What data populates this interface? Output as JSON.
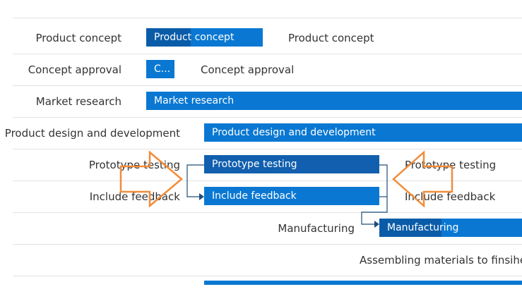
{
  "tasks": [
    {
      "label": "Product concept",
      "bar_label": "Product concept",
      "side_label": "Product concept"
    },
    {
      "label": "Concept approval",
      "bar_label": "C...",
      "side_label": "Concept approval"
    },
    {
      "label": "Market research",
      "bar_label": "Market research"
    },
    {
      "label": "Product design and development",
      "bar_label": "Product design and development"
    },
    {
      "label": "Prototype testing",
      "bar_label": "Prototype testing",
      "side_label": "Prototype testing"
    },
    {
      "label": "Include feedback",
      "bar_label": "Include feedback",
      "side_label": "Include feedback"
    },
    {
      "bar_label": "Manufacturing",
      "side_label": "Manufacturing"
    },
    {
      "side_label": "Assembling materials to finsihed"
    }
  ]
}
